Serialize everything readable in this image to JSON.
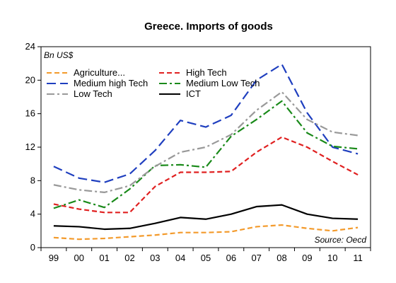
{
  "chart_data": {
    "type": "line",
    "title": "Greece. Imports of goods",
    "unit_label": "Bn US$",
    "source": "Source: Oecd",
    "categories": [
      "99",
      "00",
      "01",
      "02",
      "03",
      "04",
      "05",
      "06",
      "07",
      "08",
      "09",
      "10",
      "11"
    ],
    "ylim": [
      0,
      24
    ],
    "yticks": [
      0,
      4,
      8,
      12,
      16,
      20,
      24
    ],
    "grid": false,
    "legend_position": "top-left",
    "series": [
      {
        "name": "Agriculture...",
        "color": "#f39a2b",
        "dash": "dashed",
        "values": [
          1.2,
          1.0,
          1.1,
          1.3,
          1.5,
          1.8,
          1.8,
          1.9,
          2.5,
          2.7,
          2.3,
          2.0,
          2.4
        ]
      },
      {
        "name": "High Tech",
        "color": "#e02020",
        "dash": "dashed",
        "values": [
          5.2,
          4.6,
          4.2,
          4.2,
          7.3,
          9.0,
          9.0,
          9.1,
          11.4,
          13.2,
          12.0,
          10.3,
          8.7
        ]
      },
      {
        "name": "Medium high Tech",
        "color": "#1f3fbf",
        "dash": "longdash",
        "values": [
          9.7,
          8.3,
          7.8,
          8.8,
          11.6,
          15.2,
          14.4,
          15.8,
          20.0,
          21.9,
          16.1,
          12.0,
          11.2
        ]
      },
      {
        "name": "Medium Low Tech",
        "color": "#1a8a1a",
        "dash": "dashdot",
        "values": [
          4.7,
          5.7,
          4.8,
          7.0,
          9.8,
          9.9,
          9.6,
          13.3,
          15.3,
          17.5,
          13.7,
          12.1,
          11.8
        ]
      },
      {
        "name": "Low Tech",
        "color": "#999999",
        "dash": "dashdot",
        "values": [
          7.5,
          6.9,
          6.6,
          7.4,
          9.7,
          11.4,
          12.0,
          13.5,
          16.4,
          18.6,
          15.3,
          13.8,
          13.4
        ]
      },
      {
        "name": "ICT",
        "color": "#000000",
        "dash": "solid",
        "values": [
          2.6,
          2.5,
          2.2,
          2.3,
          2.9,
          3.6,
          3.4,
          4.0,
          4.9,
          5.1,
          4.0,
          3.5,
          3.4
        ]
      }
    ]
  }
}
